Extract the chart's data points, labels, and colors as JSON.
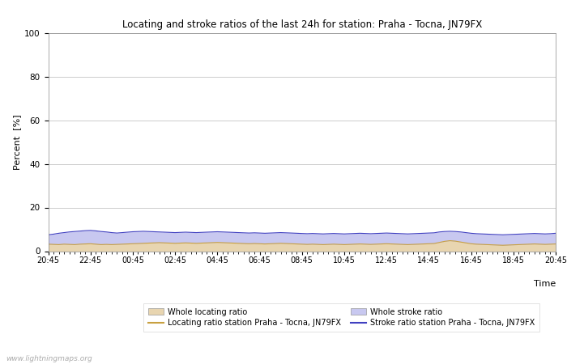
{
  "title": "Locating and stroke ratios of the last 24h for station: Praha - Tocna, JN79FX",
  "xlabel": "Time",
  "ylabel": "Percent  [%]",
  "ylim": [
    0,
    100
  ],
  "yticks": [
    0,
    20,
    40,
    60,
    80,
    100
  ],
  "x_labels": [
    "20:45",
    "22:45",
    "00:45",
    "02:45",
    "04:45",
    "06:45",
    "08:45",
    "10:45",
    "12:45",
    "14:45",
    "16:45",
    "18:45",
    "20:45"
  ],
  "background_color": "#ffffff",
  "plot_bg_color": "#ffffff",
  "grid_color": "#cccccc",
  "watermark": "www.lightningmaps.org",
  "whole_locating_fill_color": "#e8d5b0",
  "whole_stroke_fill_color": "#c8c8f0",
  "locating_line_color": "#c8a040",
  "stroke_line_color": "#4040c0",
  "n_points": 97,
  "whole_locating_values": [
    3.2,
    3.1,
    3.0,
    3.2,
    3.1,
    3.0,
    3.2,
    3.3,
    3.4,
    3.2,
    3.0,
    3.1,
    3.0,
    3.1,
    3.2,
    3.3,
    3.4,
    3.5,
    3.6,
    3.7,
    3.8,
    3.9,
    3.8,
    3.7,
    3.6,
    3.7,
    3.8,
    3.7,
    3.6,
    3.7,
    3.8,
    3.9,
    4.0,
    3.9,
    3.8,
    3.7,
    3.6,
    3.5,
    3.4,
    3.5,
    3.4,
    3.3,
    3.4,
    3.5,
    3.6,
    3.5,
    3.4,
    3.3,
    3.2,
    3.1,
    3.2,
    3.1,
    3.0,
    3.1,
    3.2,
    3.1,
    3.0,
    3.1,
    3.2,
    3.3,
    3.2,
    3.1,
    3.2,
    3.3,
    3.4,
    3.3,
    3.2,
    3.1,
    3.0,
    3.1,
    3.2,
    3.3,
    3.4,
    3.5,
    4.0,
    4.5,
    4.8,
    4.6,
    4.2,
    3.8,
    3.4,
    3.2,
    3.1,
    3.0,
    2.9,
    2.8,
    2.7,
    2.8,
    2.9,
    3.0,
    3.1,
    3.2,
    3.3,
    3.2,
    3.1,
    3.2,
    3.3
  ],
  "whole_stroke_values": [
    7.5,
    7.8,
    8.2,
    8.5,
    8.8,
    9.0,
    9.2,
    9.4,
    9.5,
    9.3,
    9.0,
    8.8,
    8.5,
    8.3,
    8.5,
    8.7,
    8.9,
    9.0,
    9.1,
    9.0,
    8.9,
    8.8,
    8.7,
    8.6,
    8.5,
    8.6,
    8.7,
    8.6,
    8.5,
    8.6,
    8.7,
    8.8,
    8.9,
    8.8,
    8.7,
    8.6,
    8.5,
    8.4,
    8.3,
    8.4,
    8.3,
    8.2,
    8.3,
    8.4,
    8.5,
    8.4,
    8.3,
    8.2,
    8.1,
    8.0,
    8.1,
    8.0,
    7.9,
    8.0,
    8.1,
    8.0,
    7.9,
    8.0,
    8.1,
    8.2,
    8.1,
    8.0,
    8.1,
    8.2,
    8.3,
    8.2,
    8.1,
    8.0,
    7.9,
    8.0,
    8.1,
    8.2,
    8.3,
    8.4,
    8.8,
    9.0,
    9.1,
    9.0,
    8.8,
    8.5,
    8.2,
    8.0,
    7.9,
    7.8,
    7.7,
    7.6,
    7.5,
    7.6,
    7.7,
    7.8,
    7.9,
    8.0,
    8.1,
    8.0,
    7.9,
    8.0,
    8.2
  ],
  "locating_line_values": [
    3.2,
    3.1,
    3.0,
    3.2,
    3.1,
    3.0,
    3.2,
    3.3,
    3.4,
    3.2,
    3.0,
    3.1,
    3.0,
    3.1,
    3.2,
    3.3,
    3.4,
    3.5,
    3.6,
    3.7,
    3.8,
    3.9,
    3.8,
    3.7,
    3.6,
    3.7,
    3.8,
    3.7,
    3.6,
    3.7,
    3.8,
    3.9,
    4.0,
    3.9,
    3.8,
    3.7,
    3.6,
    3.5,
    3.4,
    3.5,
    3.4,
    3.3,
    3.4,
    3.5,
    3.6,
    3.5,
    3.4,
    3.3,
    3.2,
    3.1,
    3.2,
    3.1,
    3.0,
    3.1,
    3.2,
    3.1,
    3.0,
    3.1,
    3.2,
    3.3,
    3.2,
    3.1,
    3.2,
    3.3,
    3.4,
    3.3,
    3.2,
    3.1,
    3.0,
    3.1,
    3.2,
    3.3,
    3.4,
    3.5,
    4.0,
    4.5,
    4.8,
    4.6,
    4.2,
    3.8,
    3.4,
    3.2,
    3.1,
    3.0,
    2.9,
    2.8,
    2.7,
    2.8,
    2.9,
    3.0,
    3.1,
    3.2,
    3.3,
    3.2,
    3.1,
    3.2,
    3.3
  ],
  "stroke_line_values": [
    7.5,
    7.8,
    8.2,
    8.5,
    8.8,
    9.0,
    9.2,
    9.4,
    9.5,
    9.3,
    9.0,
    8.8,
    8.5,
    8.3,
    8.5,
    8.7,
    8.9,
    9.0,
    9.1,
    9.0,
    8.9,
    8.8,
    8.7,
    8.6,
    8.5,
    8.6,
    8.7,
    8.6,
    8.5,
    8.6,
    8.7,
    8.8,
    8.9,
    8.8,
    8.7,
    8.6,
    8.5,
    8.4,
    8.3,
    8.4,
    8.3,
    8.2,
    8.3,
    8.4,
    8.5,
    8.4,
    8.3,
    8.2,
    8.1,
    8.0,
    8.1,
    8.0,
    7.9,
    8.0,
    8.1,
    8.0,
    7.9,
    8.0,
    8.1,
    8.2,
    8.1,
    8.0,
    8.1,
    8.2,
    8.3,
    8.2,
    8.1,
    8.0,
    7.9,
    8.0,
    8.1,
    8.2,
    8.3,
    8.4,
    8.8,
    9.0,
    9.1,
    9.0,
    8.8,
    8.5,
    8.2,
    8.0,
    7.9,
    7.8,
    7.7,
    7.6,
    7.5,
    7.6,
    7.7,
    7.8,
    7.9,
    8.0,
    8.1,
    8.0,
    7.9,
    8.0,
    8.2
  ]
}
